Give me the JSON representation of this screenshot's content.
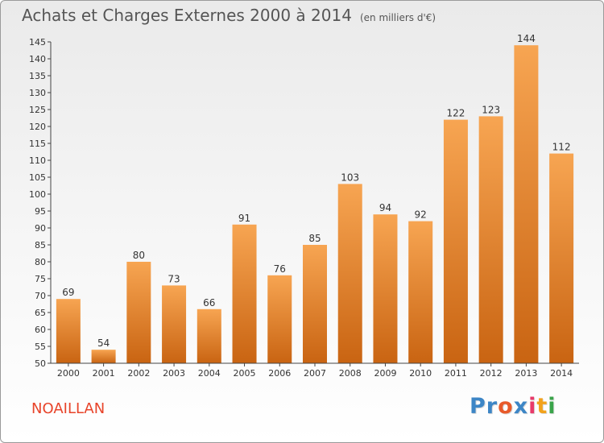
{
  "header": {
    "title": "Achats et Charges Externes 2000 à 2014",
    "unit": "(en milliers d'€)"
  },
  "footer": {
    "commune": "NOAILLAN",
    "brand_letters": [
      "P",
      "r",
      "o",
      "x",
      "i",
      "t",
      "i"
    ]
  },
  "colors": {
    "bar_top": "#f7a552",
    "bar_bottom": "#c96412",
    "commune": "#e8442a",
    "brand": [
      "#3d86c6",
      "#3d86c6",
      "#e85a2a",
      "#3d86c6",
      "#e83a6a",
      "#f2a21b",
      "#3aa44a"
    ]
  },
  "chart_data": {
    "type": "bar",
    "title": "Achats et Charges Externes 2000 à 2014",
    "subtitle": "(en milliers d'€)",
    "xlabel": "",
    "ylabel": "",
    "categories": [
      "2000",
      "2001",
      "2002",
      "2003",
      "2004",
      "2005",
      "2006",
      "2007",
      "2008",
      "2009",
      "2010",
      "2011",
      "2012",
      "2013",
      "2014"
    ],
    "values": [
      69,
      54,
      80,
      73,
      66,
      91,
      76,
      85,
      103,
      94,
      92,
      122,
      123,
      144,
      112
    ],
    "ylim": [
      50,
      145
    ],
    "yticks": [
      50,
      55,
      60,
      65,
      70,
      75,
      80,
      85,
      90,
      95,
      100,
      105,
      110,
      115,
      120,
      125,
      130,
      135,
      140,
      145
    ],
    "grid": false,
    "legend": "none"
  }
}
